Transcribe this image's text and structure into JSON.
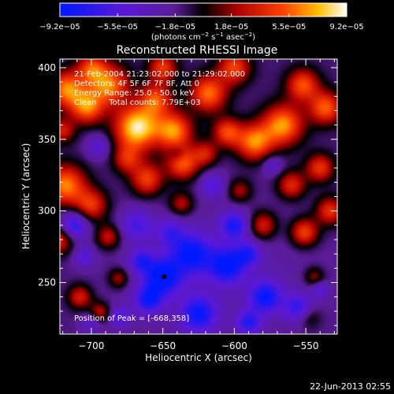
{
  "chart_data": {
    "type": "heatmap",
    "title": "Reconstructed RHESSI Image",
    "xlabel": "Heliocentric X (arcsec)",
    "ylabel": "Heliocentric Y (arcsec)",
    "xlim": [
      -722,
      -528
    ],
    "ylim": [
      214,
      406
    ],
    "x_ticks": [
      -700,
      -650,
      -600,
      -550
    ],
    "y_ticks": [
      250,
      300,
      350,
      400
    ],
    "x_tick_labels": [
      "−700",
      "−650",
      "−600",
      "−550"
    ],
    "y_tick_labels": [
      "250",
      "300",
      "350",
      "400"
    ],
    "colorbar": {
      "ticks": [
        -9.2e-05,
        -5.5e-05,
        -1.8e-05,
        1.8e-05,
        5.5e-05,
        9.2e-05
      ],
      "tick_labels": [
        "−9.2e−05",
        "−5.5e−05",
        "−1.8e−05",
        "1.8e−05",
        "5.5e−05",
        "9.2e−05"
      ],
      "label_pre": "(photons cm",
      "label_sup1": "−2",
      "label_mid1": " s",
      "label_sup2": "−1",
      "label_mid2": " asec",
      "label_sup3": "−2",
      "label_post": ")",
      "stops": [
        {
          "v": 0.0,
          "color": "#0018ff"
        },
        {
          "v": 0.22,
          "color": "#5a18d8"
        },
        {
          "v": 0.4,
          "color": "#5a1c96"
        },
        {
          "v": 0.5,
          "color": "#000000"
        },
        {
          "v": 0.62,
          "color": "#b00000"
        },
        {
          "v": 0.78,
          "color": "#ff4200"
        },
        {
          "v": 0.9,
          "color": "#ffbe00"
        },
        {
          "v": 1.0,
          "color": "#ffffff"
        }
      ]
    },
    "annotations": [
      "21-Feb-2004 21:23:02.000 to 21:29:02.000",
      "Detectors: 4F 5F 6F 7F 8F, Att 0",
      "Energy Range: 25.0 - 50.0 keV",
      "Clean     Total counts: 7.79E+03"
    ],
    "peak_label": "Position of Peak = [-668,358]",
    "peak_marker": [
      -649,
      254
    ],
    "date_stamp": "22-Jun-2013 02:55",
    "hot_sources": [
      [
        -717,
        385,
        9,
        1.0
      ],
      [
        -703,
        372,
        8,
        0.9
      ],
      [
        -688,
        388,
        10,
        1.0
      ],
      [
        -668,
        358,
        11,
        1.3
      ],
      [
        -655,
        378,
        8,
        0.8
      ],
      [
        -642,
        356,
        9,
        1.0
      ],
      [
        -636,
        333,
        8,
        0.9
      ],
      [
        -618,
        382,
        9,
        0.95
      ],
      [
        -605,
        355,
        7,
        0.8
      ],
      [
        -586,
        348,
        9,
        1.0
      ],
      [
        -566,
        360,
        10,
        1.05
      ],
      [
        -552,
        388,
        8,
        0.85
      ],
      [
        -536,
        372,
        8,
        0.9
      ],
      [
        -540,
        330,
        7,
        0.75
      ],
      [
        -560,
        318,
        7,
        0.7
      ],
      [
        -580,
        290,
        7,
        0.7
      ],
      [
        -551,
        285,
        7,
        0.85
      ],
      [
        -533,
        300,
        7,
        0.75
      ],
      [
        -718,
        318,
        10,
        1.0
      ],
      [
        -700,
        304,
        8,
        0.75
      ],
      [
        -722,
        280,
        7,
        0.7
      ],
      [
        -688,
        282,
        6,
        0.6
      ],
      [
        -661,
        322,
        8,
        0.8
      ],
      [
        -637,
        305,
        6,
        0.55
      ],
      [
        -708,
        240,
        6,
        0.65
      ],
      [
        -694,
        229,
        5,
        0.6
      ],
      [
        -681,
        253,
        5,
        0.5
      ],
      [
        -675,
        336,
        7,
        0.6
      ],
      [
        -620,
        340,
        6,
        0.6
      ],
      [
        -596,
        314,
        6,
        0.5
      ],
      [
        -544,
        254,
        5,
        0.45
      ],
      [
        -600,
        400,
        8,
        0.8
      ],
      [
        -650,
        400,
        7,
        0.75
      ],
      [
        -700,
        400,
        7,
        0.7
      ],
      [
        -720,
        356,
        6,
        0.6
      ],
      [
        -548,
        226,
        6,
        0.4
      ]
    ],
    "cold_sources": [
      [
        -712,
        290,
        7,
        0.8
      ],
      [
        -695,
        345,
        6,
        0.45
      ],
      [
        -650,
        254,
        9,
        1.0
      ],
      [
        -630,
        270,
        10,
        0.9
      ],
      [
        -605,
        262,
        9,
        0.9
      ],
      [
        -600,
        290,
        7,
        0.75
      ],
      [
        -578,
        240,
        8,
        0.85
      ],
      [
        -555,
        232,
        7,
        0.7
      ],
      [
        -625,
        228,
        9,
        0.85
      ],
      [
        -660,
        238,
        7,
        0.8
      ],
      [
        -668,
        290,
        8,
        0.55
      ],
      [
        -645,
        285,
        7,
        0.5
      ],
      [
        -590,
        270,
        6,
        0.6
      ],
      [
        -573,
        332,
        5,
        0.4
      ],
      [
        -640,
        340,
        4,
        0.3
      ],
      [
        -705,
        268,
        5,
        0.5
      ],
      [
        -680,
        226,
        5,
        0.55
      ],
      [
        -540,
        245,
        4,
        0.45
      ],
      [
        -615,
        318,
        6,
        0.5
      ],
      [
        -665,
        265,
        6,
        0.65
      ],
      [
        -590,
        222,
        6,
        0.7
      ],
      [
        -700,
        222,
        5,
        0.4
      ]
    ]
  }
}
